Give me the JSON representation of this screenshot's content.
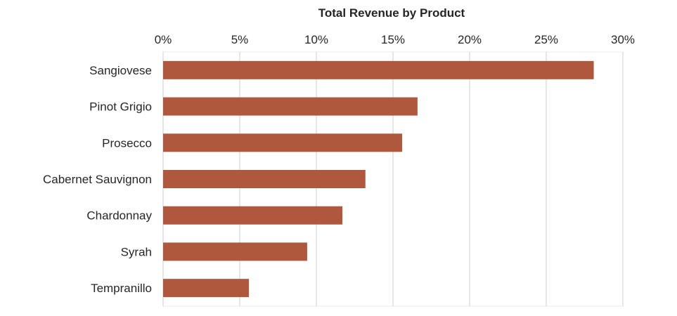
{
  "chart_data": {
    "type": "bar",
    "orientation": "horizontal",
    "title": "Total Revenue by Product",
    "xlabel": "",
    "ylabel": "",
    "categories": [
      "Sangiovese",
      "Pinot Grigio",
      "Prosecco",
      "Cabernet Sauvignon",
      "Chardonnay",
      "Syrah",
      "Tempranillo"
    ],
    "values": [
      28.1,
      16.6,
      15.6,
      13.2,
      11.7,
      9.4,
      5.6
    ],
    "value_format": "percent",
    "xlim": [
      0,
      30
    ],
    "xticks": [
      0,
      5,
      10,
      15,
      20,
      25,
      30
    ],
    "xtick_labels": [
      "0%",
      "5%",
      "10%",
      "15%",
      "20%",
      "25%",
      "30%"
    ],
    "x_axis_position": "top",
    "grid": true,
    "legend": "none",
    "bar_color": "#B0583D",
    "grid_color": "#E6E6E6"
  }
}
